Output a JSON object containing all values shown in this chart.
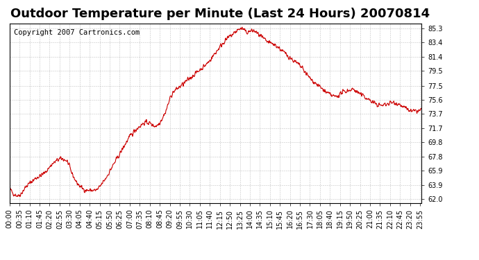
{
  "title": "Outdoor Temperature per Minute (Last 24 Hours) 20070814",
  "copyright": "Copyright 2007 Cartronics.com",
  "line_color": "#cc0000",
  "background_color": "#ffffff",
  "plot_bg_color": "#ffffff",
  "grid_color": "#aaaaaa",
  "yticks": [
    62.0,
    63.9,
    65.9,
    67.8,
    69.8,
    71.7,
    73.7,
    75.6,
    77.5,
    79.5,
    81.4,
    83.4,
    85.3
  ],
  "ylim": [
    61.5,
    86.0
  ],
  "title_fontsize": 13,
  "copyright_fontsize": 7.5,
  "tick_label_fontsize": 7,
  "xtick_interval_minutes": 35,
  "total_minutes": 1440,
  "seed": 42,
  "key_points": [
    [
      0,
      63.5
    ],
    [
      30,
      62.5
    ],
    [
      60,
      63.8
    ],
    [
      90,
      64.8
    ],
    [
      120,
      65.5
    ],
    [
      150,
      66.8
    ],
    [
      180,
      67.5
    ],
    [
      200,
      67.2
    ],
    [
      215,
      65.8
    ],
    [
      240,
      64.0
    ],
    [
      270,
      63.2
    ],
    [
      300,
      63.2
    ],
    [
      330,
      64.5
    ],
    [
      360,
      66.5
    ],
    [
      390,
      68.5
    ],
    [
      420,
      70.5
    ],
    [
      450,
      71.8
    ],
    [
      480,
      72.5
    ],
    [
      510,
      72.0
    ],
    [
      540,
      73.5
    ],
    [
      570,
      76.5
    ],
    [
      600,
      77.5
    ],
    [
      630,
      78.5
    ],
    [
      660,
      79.5
    ],
    [
      690,
      80.5
    ],
    [
      720,
      82.0
    ],
    [
      750,
      83.5
    ],
    [
      780,
      84.5
    ],
    [
      810,
      85.3
    ],
    [
      830,
      84.8
    ],
    [
      850,
      85.0
    ],
    [
      870,
      84.5
    ],
    [
      900,
      83.5
    ],
    [
      930,
      83.0
    ],
    [
      960,
      82.0
    ],
    [
      990,
      81.0
    ],
    [
      1020,
      80.0
    ],
    [
      1050,
      78.5
    ],
    [
      1080,
      77.5
    ],
    [
      1110,
      76.5
    ],
    [
      1140,
      76.0
    ],
    [
      1160,
      76.5
    ],
    [
      1180,
      76.8
    ],
    [
      1200,
      77.0
    ],
    [
      1220,
      76.5
    ],
    [
      1240,
      76.0
    ],
    [
      1260,
      75.5
    ],
    [
      1280,
      75.0
    ],
    [
      1300,
      74.8
    ],
    [
      1320,
      75.0
    ],
    [
      1340,
      75.2
    ],
    [
      1360,
      75.0
    ],
    [
      1380,
      74.5
    ],
    [
      1410,
      74.0
    ],
    [
      1440,
      74.2
    ]
  ]
}
